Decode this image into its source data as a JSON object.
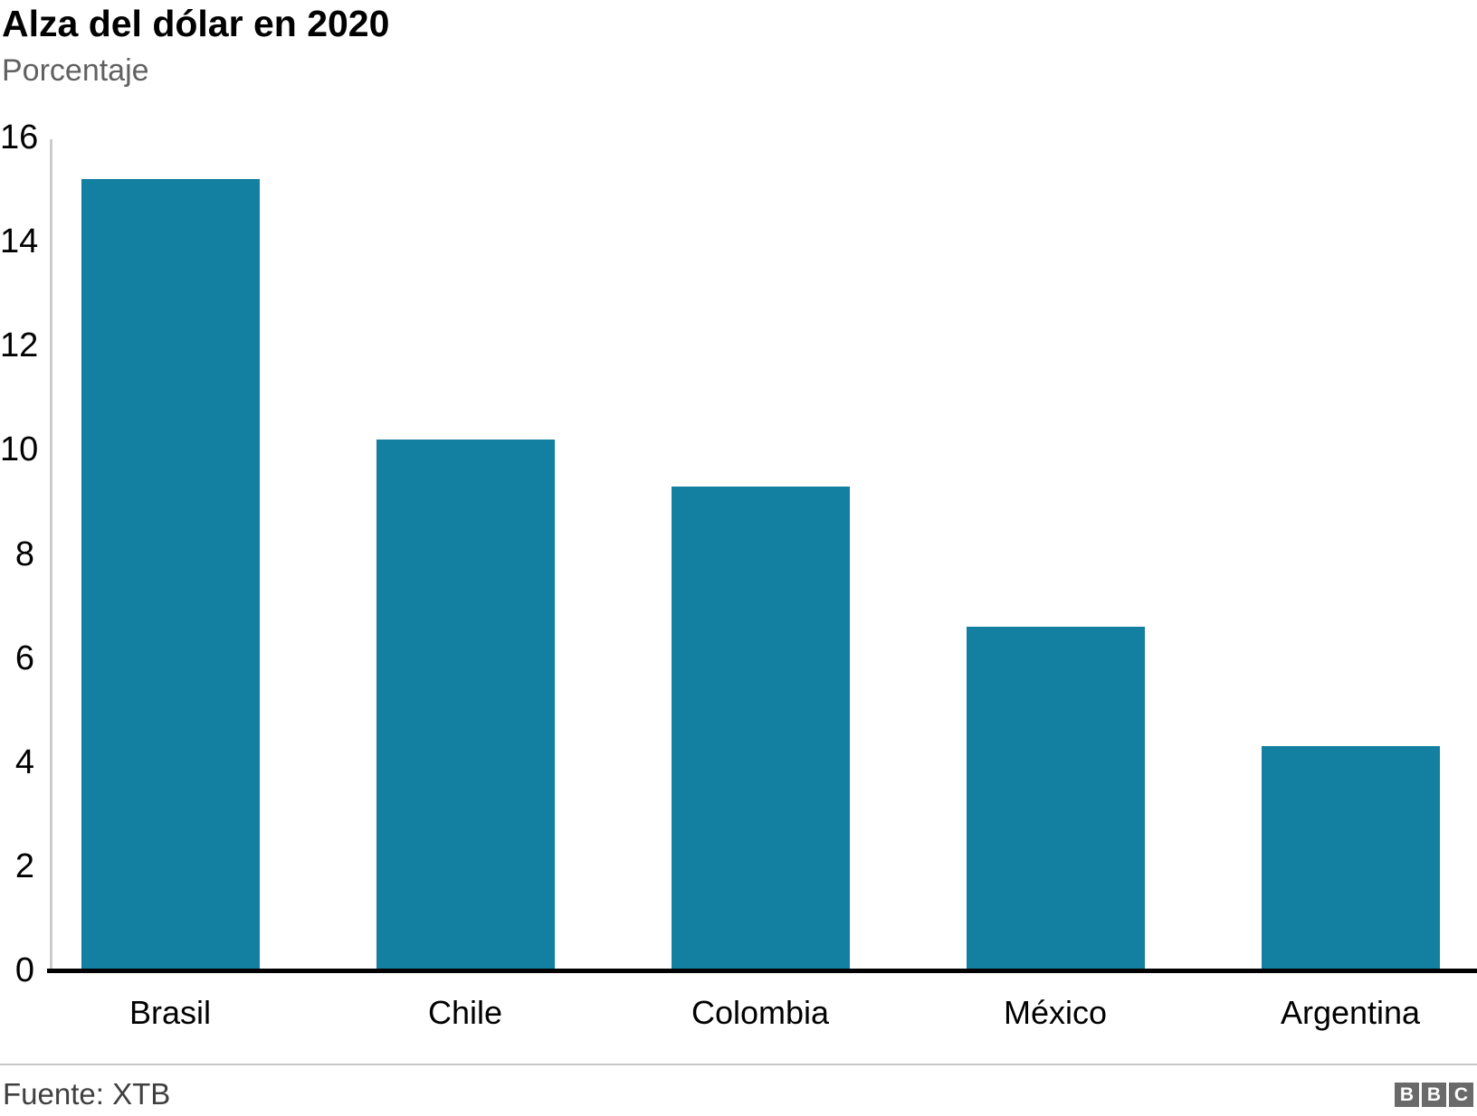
{
  "header": {
    "title": "Alza del dólar en 2020",
    "subtitle": "Porcentaje"
  },
  "chart_data": {
    "type": "bar",
    "categories": [
      "Brasil",
      "Chile",
      "Colombia",
      "México",
      "Argentina"
    ],
    "values": [
      15.2,
      10.2,
      9.3,
      6.6,
      4.3
    ],
    "title": "Alza del dólar en 2020",
    "subtitle": "Porcentaje",
    "xlabel": "",
    "ylabel": "",
    "ylim": [
      0,
      16
    ],
    "yticks": [
      0,
      2,
      4,
      6,
      8,
      10,
      12,
      14,
      16
    ],
    "grid": false,
    "legend": "none",
    "bar_color": "#1380A1"
  },
  "footer": {
    "source": "Fuente: XTB",
    "logo_letters": [
      "B",
      "B",
      "C"
    ]
  },
  "colors": {
    "bar": "#1380A1",
    "subtitle_text": "#616161",
    "axis_line": "#cccccc",
    "baseline": "#000000",
    "divider": "#c8c8c8",
    "source_text": "#404040",
    "logo_bg": "#6a6a6a"
  }
}
